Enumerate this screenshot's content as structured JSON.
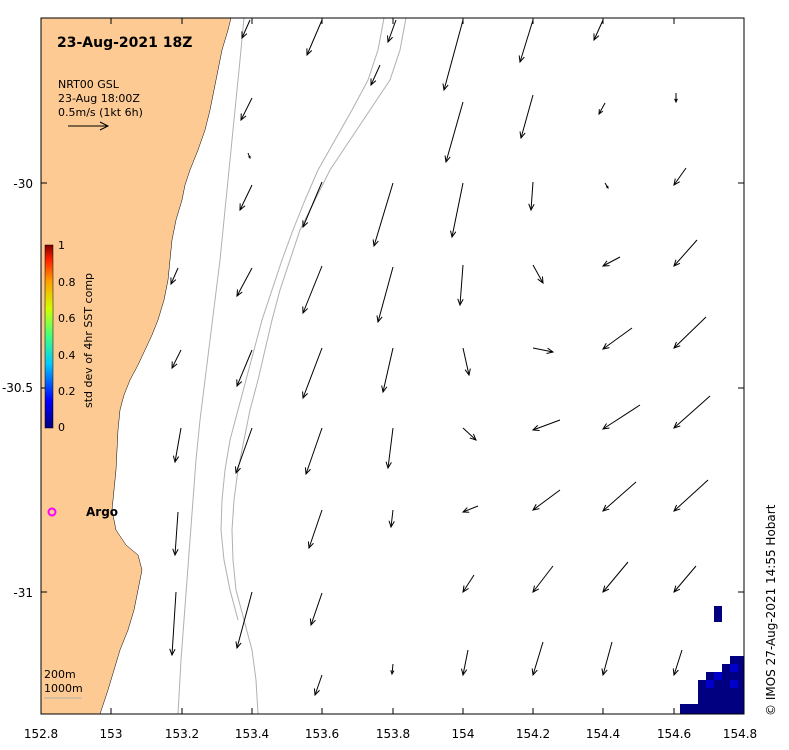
{
  "title": "23-Aug-2021 18Z",
  "legend_text": {
    "line1": "NRT00 GSL",
    "line2": "23-Aug 18:00Z",
    "line3": "0.5m/s (1kt 6h)"
  },
  "colorbar": {
    "label": "std dev of 4hr SST comp",
    "ticks": [
      "1",
      "0.8",
      "0.6",
      "0.4",
      "0.2",
      "0"
    ]
  },
  "x_ticks": [
    "152.8",
    "153",
    "153.2",
    "153.4",
    "153.6",
    "153.8",
    "154",
    "154.2",
    "154.4",
    "154.6",
    "154.8"
  ],
  "y_ticks": [
    "-30",
    "-30.5",
    "-31"
  ],
  "argo_label": "Argo",
  "isobaths": {
    "line1": "200m",
    "line2": "1000m"
  },
  "credit": "© IMOS 27-Aug-2021 14:55 Hobart",
  "colors": {
    "land": "#fdca94",
    "argo": "#ff00ff",
    "sst_dark": "#000080",
    "sst_mid": "#0000c8",
    "isobath": "#b0b0b0"
  }
}
